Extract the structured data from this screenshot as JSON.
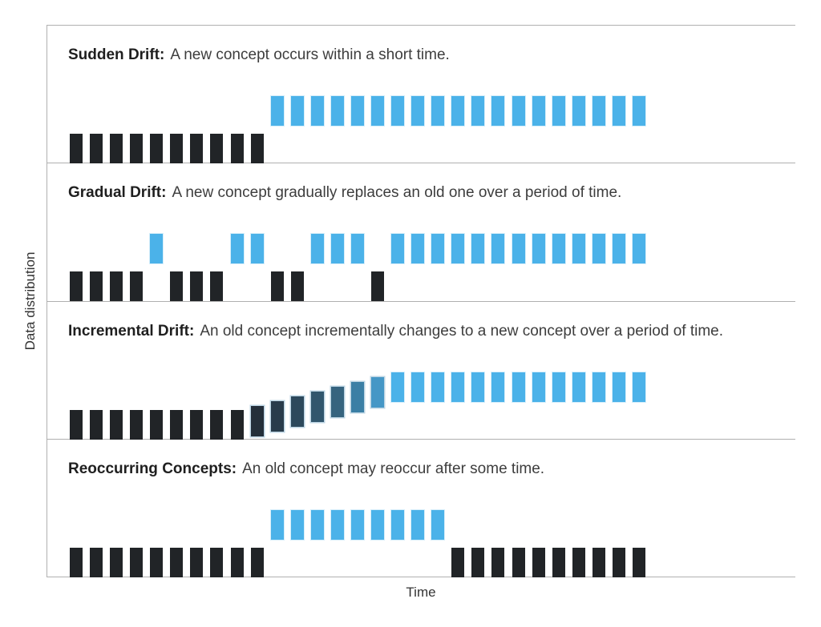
{
  "diagram": {
    "y_axis_label": "Data distribution",
    "x_axis_label": "Time",
    "colors": {
      "old_concept": "#212427",
      "new_concept": "#4bb2e9",
      "frame_line": "#b0b0b0",
      "title_text": "#1f1f1f",
      "body_text": "#3d3d3d"
    },
    "panels": [
      {
        "id": "sudden-drift",
        "title": "Sudden Drift:",
        "description": "A new concept occurs within a short time.",
        "old_slots": [
          0,
          1,
          2,
          3,
          4,
          5,
          6,
          7,
          8,
          9
        ],
        "new_slots": [
          10,
          11,
          12,
          13,
          14,
          15,
          16,
          17,
          18,
          19,
          20,
          21,
          22,
          23,
          24,
          25,
          26,
          27,
          28
        ],
        "mid_bars": []
      },
      {
        "id": "gradual-drift",
        "title": "Gradual Drift:",
        "description": "A new concept gradually replaces an old one over a period of time.",
        "old_slots": [
          0,
          1,
          2,
          3,
          5,
          6,
          7,
          10,
          11,
          15
        ],
        "new_slots": [
          4,
          8,
          9,
          12,
          13,
          14,
          16,
          17,
          18,
          19,
          20,
          21,
          22,
          23,
          24,
          25,
          26,
          27,
          28
        ],
        "mid_bars": []
      },
      {
        "id": "incremental-drift",
        "title": "Incremental Drift:",
        "description": "An old concept incrementally changes to a new concept over a period of time.",
        "old_slots": [
          0,
          1,
          2,
          3,
          4,
          5,
          6,
          7,
          8
        ],
        "new_slots": [
          16,
          17,
          18,
          19,
          20,
          21,
          22,
          23,
          24,
          25,
          26,
          27,
          28
        ],
        "mid_bars": [
          {
            "slot": 9,
            "color": "#242f3a",
            "rise": 5
          },
          {
            "slot": 10,
            "color": "#293c4b",
            "rise": 11
          },
          {
            "slot": 11,
            "color": "#2d495c",
            "rise": 17
          },
          {
            "slot": 12,
            "color": "#31566d",
            "rise": 23
          },
          {
            "slot": 13,
            "color": "#36647f",
            "rise": 29
          },
          {
            "slot": 14,
            "color": "#3b7fa5",
            "rise": 35
          },
          {
            "slot": 15,
            "color": "#4597c6",
            "rise": 41
          }
        ]
      },
      {
        "id": "reoccurring-concepts",
        "title": "Reoccurring Concepts:",
        "description": "An old concept may reoccur after some time.",
        "old_slots": [
          0,
          1,
          2,
          3,
          4,
          5,
          6,
          7,
          8,
          9,
          19,
          20,
          21,
          22,
          23,
          24,
          25,
          26,
          27,
          28
        ],
        "new_slots": [
          10,
          11,
          12,
          13,
          14,
          15,
          16,
          17,
          18
        ],
        "mid_bars": []
      }
    ]
  }
}
